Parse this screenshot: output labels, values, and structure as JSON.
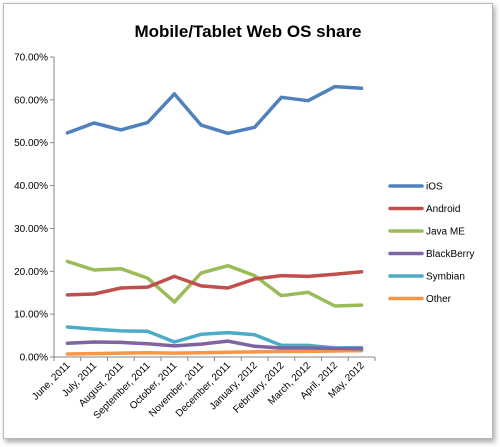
{
  "chart_data": {
    "type": "line",
    "title": "Mobile/Tablet Web OS share",
    "xlabel": "",
    "ylabel": "",
    "ylim": [
      0,
      70
    ],
    "yticks": [
      "0.00%",
      "10.00%",
      "20.00%",
      "30.00%",
      "40.00%",
      "50.00%",
      "60.00%",
      "70.00%"
    ],
    "grid": false,
    "legend_position": "right",
    "categories": [
      "June, 2011",
      "July, 2011",
      "August, 2011",
      "September, 2011",
      "October, 2011",
      "November, 2011",
      "December, 2011",
      "January, 2012",
      "February, 2012",
      "March, 2012",
      "April, 2012",
      "May, 2012"
    ],
    "series": [
      {
        "name": "iOS",
        "color": "#4f81bd",
        "values": [
          52.3,
          54.6,
          53.0,
          54.7,
          61.4,
          54.1,
          52.2,
          53.6,
          60.6,
          59.8,
          63.1,
          62.7
        ]
      },
      {
        "name": "Android",
        "color": "#c0504d",
        "values": [
          14.5,
          14.7,
          16.1,
          16.3,
          18.8,
          16.6,
          16.1,
          18.2,
          19.0,
          18.8,
          19.3,
          19.9
        ]
      },
      {
        "name": "Java ME",
        "color": "#9bbb59",
        "values": [
          22.3,
          20.3,
          20.6,
          18.4,
          12.8,
          19.6,
          21.3,
          19.0,
          14.3,
          15.1,
          11.9,
          12.1
        ]
      },
      {
        "name": "BlackBerry",
        "color": "#8064a2",
        "values": [
          3.2,
          3.5,
          3.4,
          3.1,
          2.6,
          3.0,
          3.7,
          2.5,
          2.1,
          2.1,
          2.0,
          1.9
        ]
      },
      {
        "name": "Symbian",
        "color": "#4bacc6",
        "values": [
          7.0,
          6.5,
          6.1,
          6.0,
          3.5,
          5.3,
          5.7,
          5.2,
          2.7,
          2.7,
          2.1,
          2.2
        ]
      },
      {
        "name": "Other",
        "color": "#f79646",
        "values": [
          0.7,
          0.8,
          0.9,
          1.0,
          0.9,
          1.0,
          1.1,
          1.2,
          1.3,
          1.3,
          1.4,
          1.5
        ]
      }
    ]
  }
}
